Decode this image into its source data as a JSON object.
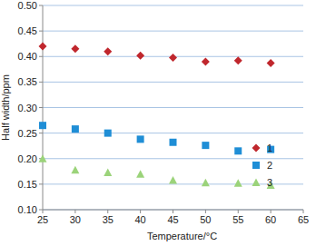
{
  "chart_data": {
    "type": "scatter",
    "x_label": "Temperature/°C",
    "y_label": "Half width/ppm",
    "x": [
      25,
      30,
      35,
      40,
      45,
      50,
      55,
      60
    ],
    "series": [
      {
        "name": "1",
        "color": "#c0272d",
        "marker": "diamond",
        "values": [
          0.42,
          0.415,
          0.41,
          0.402,
          0.398,
          0.39,
          0.392,
          0.387
        ]
      },
      {
        "name": "2",
        "color": "#1f8ed6",
        "marker": "square",
        "values": [
          0.265,
          0.258,
          0.25,
          0.238,
          0.232,
          0.226,
          0.215,
          0.218
        ]
      },
      {
        "name": "3",
        "color": "#9bd37a",
        "marker": "triangle",
        "values": [
          0.2,
          0.178,
          0.173,
          0.17,
          0.158,
          0.153,
          0.152,
          0.148
        ]
      }
    ],
    "xlim": [
      25,
      65
    ],
    "xticks": [
      25,
      30,
      35,
      40,
      45,
      50,
      55,
      60,
      65
    ],
    "ylim": [
      0.1,
      0.5
    ],
    "yticks": [
      {
        "value": 0.1,
        "label": "0.10"
      },
      0.15,
      {
        "value": 0.2,
        "label": "0.20"
      },
      0.25,
      {
        "value": 0.3,
        "label": "0.30"
      },
      0.35,
      {
        "value": 0.4,
        "label": "0.40"
      },
      0.45,
      {
        "value": 0.5,
        "label": "0.50"
      }
    ],
    "grid": true,
    "legend": "right"
  }
}
